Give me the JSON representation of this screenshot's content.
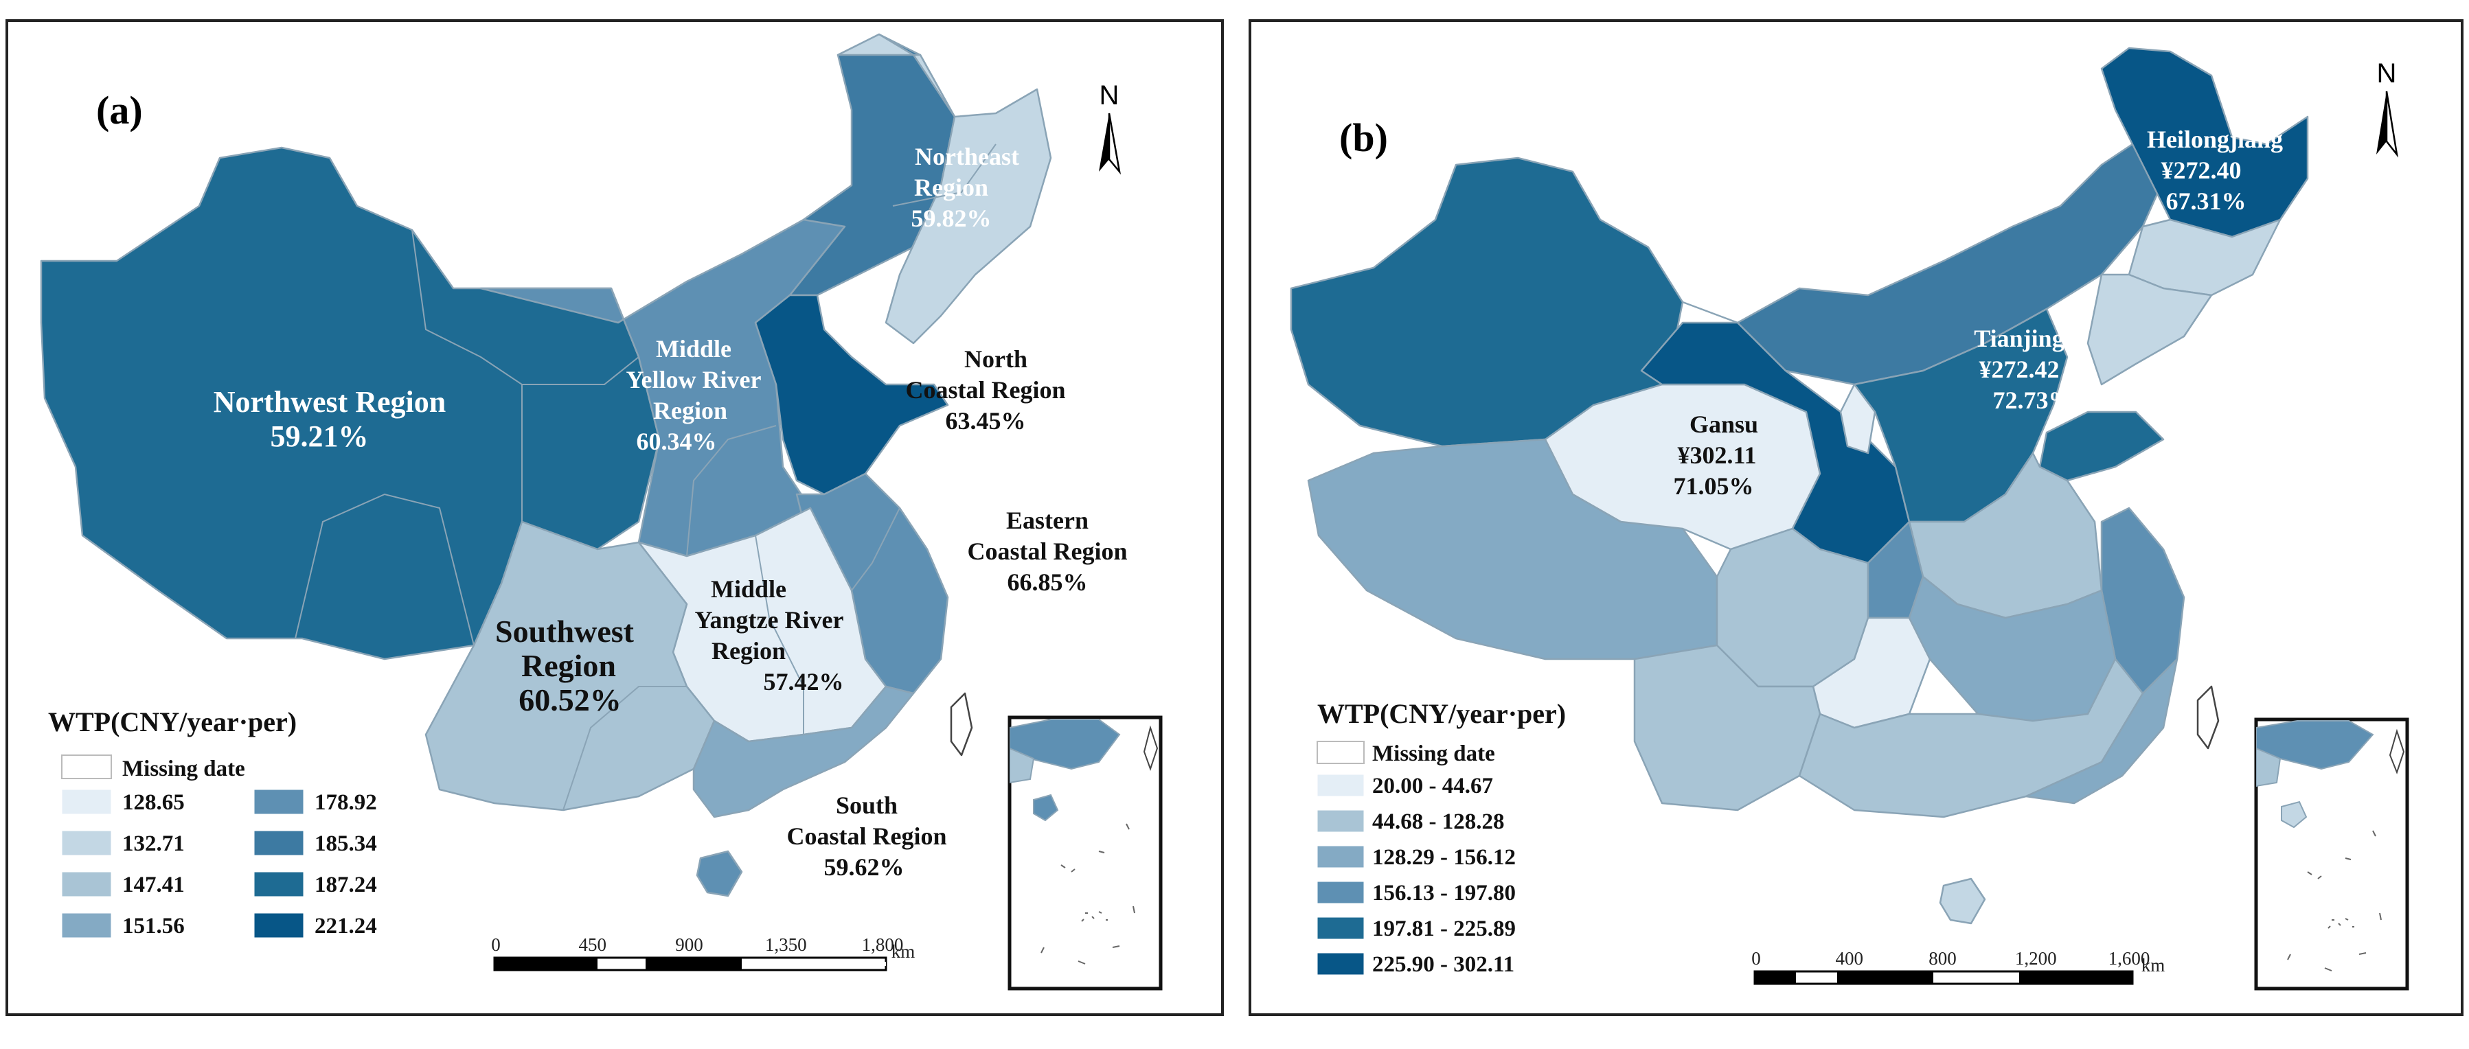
{
  "colors": {
    "c1": "#e4eef6",
    "c2": "#c3d7e4",
    "c3": "#a9c4d5",
    "c4": "#84aac4",
    "c5": "#5e90b3",
    "c6": "#3d7aa2",
    "c7": "#1e6b93",
    "c8": "#075687",
    "missing": "#ffffff"
  },
  "panel_a": {
    "label": "(a)",
    "north": "N",
    "legend": {
      "title": "WTP(CNY/year·per)",
      "missing": "Missing date",
      "items": [
        "128.65",
        "132.71",
        "147.41",
        "151.56",
        "178.92",
        "185.34",
        "187.24",
        "221.24"
      ]
    },
    "regions": [
      {
        "name": "Northwest Region",
        "value": "59.21%"
      },
      {
        "name_lines": [
          "Northeast",
          "Region"
        ],
        "value": "59.82%"
      },
      {
        "name_lines": [
          "Middle",
          "Yellow River",
          "Region"
        ],
        "value": "60.34%"
      },
      {
        "name_lines": [
          "North",
          "Coastal Region"
        ],
        "value": "63.45%"
      },
      {
        "name_lines": [
          "Eastern",
          "Coastal Region"
        ],
        "value": "66.85%"
      },
      {
        "name_lines": [
          "Southwest",
          "Region"
        ],
        "value": "60.52%"
      },
      {
        "name_lines": [
          "Middle",
          "Yangtze River",
          "Region"
        ],
        "value": "57.42%"
      },
      {
        "name_lines": [
          "South",
          "Coastal Region"
        ],
        "value": "59.62%"
      }
    ],
    "scale": {
      "ticks": [
        "0",
        "450",
        "900",
        "1,350",
        "1,800"
      ],
      "unit": "km"
    }
  },
  "panel_b": {
    "label": "(b)",
    "north": "N",
    "legend": {
      "title": "WTP(CNY/year·per)",
      "missing": "Missing date",
      "items": [
        "20.00 - 44.67",
        "44.68 - 128.28",
        "128.29 - 156.12",
        "156.13 - 197.80",
        "197.81 -  225.89",
        "225.90 - 302.11"
      ]
    },
    "callouts": [
      {
        "name": "Heilongjiang",
        "wtp": "¥272.40",
        "pct": "67.31%"
      },
      {
        "name": "Tianjing",
        "wtp": "¥272.42",
        "pct": "72.73%"
      },
      {
        "name": "Gansu",
        "wtp": "¥302.11",
        "pct": "71.05%"
      }
    ],
    "scale": {
      "ticks": [
        "0",
        "400",
        "800",
        "1,200",
        "1,600"
      ],
      "unit": "km"
    }
  }
}
